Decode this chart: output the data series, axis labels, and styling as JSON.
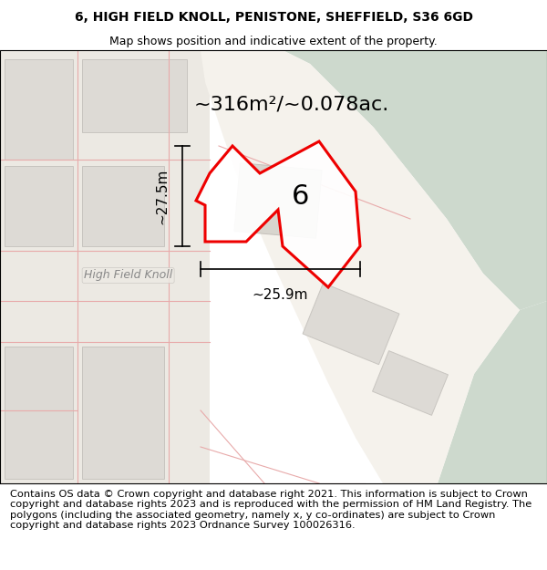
{
  "title_line1": "6, HIGH FIELD KNOLL, PENISTONE, SHEFFIELD, S36 6GD",
  "title_line2": "Map shows position and indicative extent of the property.",
  "area_label": "~316m²/~0.078ac.",
  "dim_vertical": "~27.5m",
  "dim_horizontal": "~25.9m",
  "plot_label": "6",
  "footer_text": "Contains OS data © Crown copyright and database right 2021. This information is subject to Crown copyright and database rights 2023 and is reproduced with the permission of HM Land Registry. The polygons (including the associated geometry, namely x, y co-ordinates) are subject to Crown copyright and database rights 2023 Ordnance Survey 100026316.",
  "bg_color": "#ffffff",
  "map_bg": "#f0ede6",
  "green_color": "#cdd9cd",
  "building_fc": "#dddad5",
  "building_ec": "#c8c5c0",
  "road_line": "#e8aaaa",
  "prop_outline": "#ee0000",
  "title_fontsize": 10,
  "subtitle_fontsize": 9,
  "area_fontsize": 16,
  "plot_label_fontsize": 20,
  "dim_fontsize": 10.5,
  "footer_fontsize": 8.2,
  "street_fontsize": 9
}
